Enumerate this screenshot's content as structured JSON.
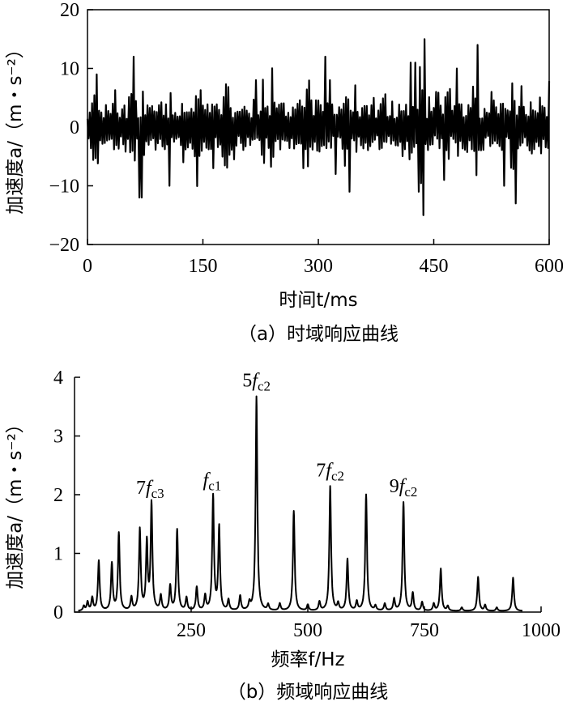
{
  "chart_data": [
    {
      "type": "line",
      "caption": "（a）时域响应曲线",
      "xlabel": "时间t/ms",
      "ylabel": "加速度a/（m・s⁻²）",
      "xlim": [
        0,
        600
      ],
      "ylim": [
        -20,
        20
      ],
      "xticks": [
        "0",
        "150",
        "300",
        "450",
        "600"
      ],
      "yticks": [
        "20",
        "10",
        "0",
        "−10",
        "−20"
      ],
      "series": [
        {
          "x": [
            0,
            12,
            24,
            36,
            48,
            60,
            72,
            84,
            96,
            108,
            120,
            132,
            144,
            156,
            168,
            180,
            192,
            204,
            216,
            228,
            240,
            252,
            264,
            276,
            288,
            300,
            312,
            324,
            336,
            348,
            360,
            372,
            384,
            396,
            408,
            420,
            432,
            444,
            456,
            468,
            480,
            492,
            504,
            516,
            528,
            540,
            552,
            564,
            576,
            588,
            600
          ],
          "values": [
            3,
            11,
            -6,
            9,
            -4,
            -12,
            7,
            -5,
            10,
            -8,
            6,
            -6,
            15,
            -7,
            4,
            -14,
            9,
            -5,
            8,
            -10,
            12,
            -9,
            6,
            -7,
            13,
            -12,
            8,
            -6,
            11,
            -9,
            7,
            -5,
            12,
            -8,
            10,
            -11,
            15,
            -6,
            9,
            -14,
            12,
            -8,
            14,
            -6,
            9,
            -10,
            13,
            -7,
            10,
            -8,
            9
          ]
        }
      ]
    },
    {
      "type": "line",
      "caption": "（b）频域响应曲线",
      "xlabel": "频率f/Hz",
      "ylabel": "加速度a/（m・s⁻²）",
      "xlim": [
        0,
        1000
      ],
      "ylim": [
        0,
        4
      ],
      "xticks": [
        "250",
        "500",
        "750",
        "1000"
      ],
      "yticks": [
        "4",
        "3",
        "2",
        "1",
        "0"
      ],
      "annotations": [
        {
          "text": "7fc3",
          "x": 162,
          "y": 1.82
        },
        {
          "text": "fc1",
          "x": 295,
          "y": 1.95
        },
        {
          "text": "5fc2",
          "x": 390,
          "y": 3.65
        },
        {
          "text": "7fc2",
          "x": 548,
          "y": 2.12
        },
        {
          "text": "9fc2",
          "x": 705,
          "y": 1.85
        }
      ],
      "series": [
        {
          "peaks_x": [
            20,
            28,
            38,
            52,
            80,
            95,
            122,
            140,
            155,
            165,
            185,
            205,
            220,
            240,
            262,
            280,
            297,
            310,
            330,
            355,
            375,
            390,
            415,
            440,
            470,
            500,
            525,
            548,
            565,
            585,
            605,
            625,
            645,
            665,
            685,
            705,
            725,
            745,
            770,
            785,
            800,
            830,
            865,
            880,
            905,
            940
          ],
          "peaks_y": [
            0.08,
            0.15,
            0.22,
            0.85,
            0.8,
            1.32,
            0.22,
            1.38,
            1.15,
            1.82,
            0.25,
            0.42,
            1.38,
            0.22,
            0.4,
            0.25,
            1.95,
            1.42,
            0.18,
            0.25,
            0.12,
            3.65,
            0.1,
            0.12,
            1.7,
            0.1,
            0.15,
            2.12,
            0.12,
            0.88,
            0.15,
            1.98,
            0.08,
            0.12,
            0.2,
            1.85,
            0.3,
            0.15,
            0.12,
            0.72,
            0.08,
            0.06,
            0.58,
            0.1,
            0.06,
            0.57
          ]
        }
      ]
    }
  ]
}
